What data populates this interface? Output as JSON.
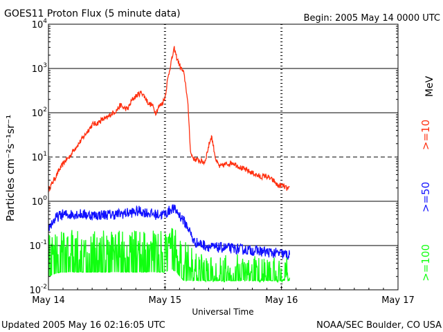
{
  "chart_data": {
    "type": "line",
    "title": "GOES11 Proton Flux (5 minute data)",
    "begin_label": "Begin: 2005 May 14 0000 UTC",
    "xlabel": "Universal Time",
    "ylabel": "Particles cm⁻²s⁻¹sr⁻¹",
    "yscale": "log",
    "ylim": [
      0.01,
      10000
    ],
    "xlim_days": [
      0,
      3
    ],
    "x_ticks": [
      "May 14",
      "May 15",
      "May 16",
      "May 17"
    ],
    "y_ticks": [
      {
        "value": 0.01,
        "base": "10",
        "exp": "-2"
      },
      {
        "value": 0.1,
        "base": "10",
        "exp": "-1"
      },
      {
        "value": 1,
        "base": "10",
        "exp": "0"
      },
      {
        "value": 10,
        "base": "10",
        "exp": "1"
      },
      {
        "value": 100,
        "base": "10",
        "exp": "2"
      },
      {
        "value": 1000,
        "base": "10",
        "exp": "3"
      },
      {
        "value": 10000,
        "base": "10",
        "exp": "4"
      }
    ],
    "unit_label": "MeV",
    "series": [
      {
        "name": ">=10",
        "color": "#ff3010",
        "points": [
          [
            0.0,
            1.8
          ],
          [
            0.03,
            2.5
          ],
          [
            0.06,
            3.5
          ],
          [
            0.1,
            5.5
          ],
          [
            0.14,
            8
          ],
          [
            0.18,
            10
          ],
          [
            0.22,
            15
          ],
          [
            0.26,
            20
          ],
          [
            0.3,
            28
          ],
          [
            0.34,
            40
          ],
          [
            0.38,
            55
          ],
          [
            0.42,
            58
          ],
          [
            0.46,
            70
          ],
          [
            0.5,
            75
          ],
          [
            0.54,
            95
          ],
          [
            0.58,
            110
          ],
          [
            0.62,
            150
          ],
          [
            0.64,
            130
          ],
          [
            0.68,
            120
          ],
          [
            0.72,
            200
          ],
          [
            0.76,
            250
          ],
          [
            0.8,
            290
          ],
          [
            0.83,
            220
          ],
          [
            0.86,
            160
          ],
          [
            0.89,
            150
          ],
          [
            0.92,
            100
          ],
          [
            0.95,
            140
          ],
          [
            0.98,
            170
          ],
          [
            1.0,
            220
          ],
          [
            1.02,
            500
          ],
          [
            1.05,
            1300
          ],
          [
            1.08,
            2800
          ],
          [
            1.1,
            1800
          ],
          [
            1.13,
            1100
          ],
          [
            1.16,
            800
          ],
          [
            1.18,
            400
          ],
          [
            1.2,
            120
          ],
          [
            1.22,
            12
          ],
          [
            1.25,
            9
          ],
          [
            1.28,
            8.5
          ],
          [
            1.31,
            8
          ],
          [
            1.34,
            7.5
          ],
          [
            1.36,
            12
          ],
          [
            1.38,
            20
          ],
          [
            1.4,
            30
          ],
          [
            1.42,
            15
          ],
          [
            1.44,
            8
          ],
          [
            1.47,
            6
          ],
          [
            1.5,
            6.5
          ],
          [
            1.54,
            7
          ],
          [
            1.58,
            7.5
          ],
          [
            1.62,
            6.5
          ],
          [
            1.66,
            5.5
          ],
          [
            1.7,
            5
          ],
          [
            1.74,
            4.5
          ],
          [
            1.78,
            4
          ],
          [
            1.82,
            3.5
          ],
          [
            1.86,
            3.8
          ],
          [
            1.9,
            3.3
          ],
          [
            1.94,
            2.8
          ],
          [
            1.97,
            2.2
          ],
          [
            2.0,
            2.3
          ],
          [
            2.02,
            2.2
          ],
          [
            2.05,
            1.9
          ],
          [
            2.07,
            1.9
          ]
        ]
      },
      {
        "name": ">=50",
        "color": "#1010ff",
        "points": [
          [
            0.0,
            0.25
          ],
          [
            0.04,
            0.35
          ],
          [
            0.08,
            0.45
          ],
          [
            0.12,
            0.5
          ],
          [
            0.18,
            0.5
          ],
          [
            0.25,
            0.52
          ],
          [
            0.32,
            0.5
          ],
          [
            0.4,
            0.48
          ],
          [
            0.48,
            0.5
          ],
          [
            0.55,
            0.5
          ],
          [
            0.62,
            0.52
          ],
          [
            0.7,
            0.55
          ],
          [
            0.78,
            0.6
          ],
          [
            0.85,
            0.55
          ],
          [
            0.92,
            0.5
          ],
          [
            0.98,
            0.5
          ],
          [
            1.02,
            0.55
          ],
          [
            1.06,
            0.7
          ],
          [
            1.1,
            0.6
          ],
          [
            1.15,
            0.4
          ],
          [
            1.2,
            0.25
          ],
          [
            1.25,
            0.12
          ],
          [
            1.3,
            0.11
          ],
          [
            1.35,
            0.1
          ],
          [
            1.4,
            0.09
          ],
          [
            1.5,
            0.09
          ],
          [
            1.6,
            0.085
          ],
          [
            1.7,
            0.08
          ],
          [
            1.8,
            0.075
          ],
          [
            1.9,
            0.07
          ],
          [
            2.0,
            0.065
          ],
          [
            2.07,
            0.06
          ]
        ]
      },
      {
        "name": ">=100",
        "color": "#10ff10",
        "points": [
          [
            0.0,
            0.08
          ],
          [
            0.05,
            0.09
          ],
          [
            0.1,
            0.1
          ],
          [
            0.2,
            0.1
          ],
          [
            0.3,
            0.1
          ],
          [
            0.4,
            0.1
          ],
          [
            0.5,
            0.1
          ],
          [
            0.6,
            0.1
          ],
          [
            0.7,
            0.1
          ],
          [
            0.8,
            0.1
          ],
          [
            0.9,
            0.1
          ],
          [
            1.0,
            0.1
          ],
          [
            1.05,
            0.12
          ],
          [
            1.1,
            0.1
          ],
          [
            1.15,
            0.07
          ],
          [
            1.2,
            0.05
          ],
          [
            1.25,
            0.035
          ],
          [
            1.3,
            0.03
          ],
          [
            1.4,
            0.03
          ],
          [
            1.5,
            0.03
          ],
          [
            1.6,
            0.03
          ],
          [
            1.7,
            0.028
          ],
          [
            1.8,
            0.028
          ],
          [
            1.9,
            0.027
          ],
          [
            2.0,
            0.027
          ],
          [
            2.07,
            0.026
          ]
        ]
      }
    ]
  },
  "footer": {
    "updated": "Updated 2005 May 16 02:16:05 UTC",
    "credit": "NOAA/SEC Boulder, CO USA"
  }
}
